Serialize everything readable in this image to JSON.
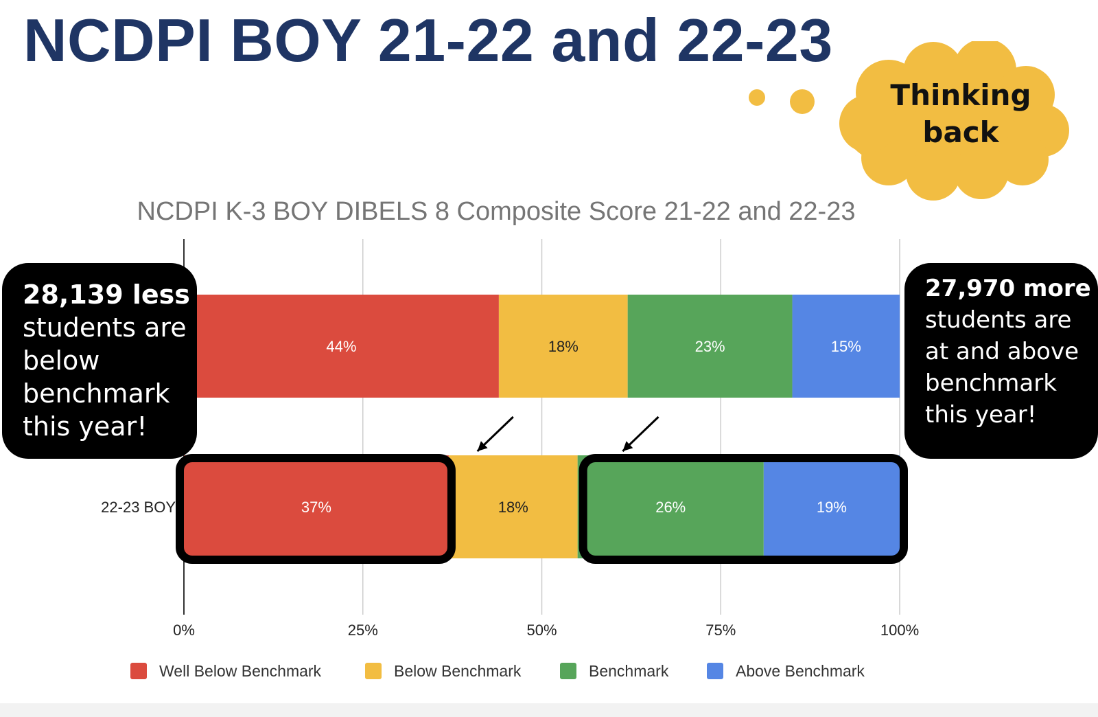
{
  "slide": {
    "title": "NCDPI BOY 21-22 and 22-23"
  },
  "thought_bubble": {
    "text": "Thinking\nback",
    "color": "#f2bd42"
  },
  "callouts": {
    "left": {
      "bold": "28,139 less",
      "rest": "students are\nbelow\nbenchmark\nthis year!"
    },
    "right": {
      "bold": "27,970 more",
      "rest": "students are\nat and above\nbenchmark\nthis year!"
    }
  },
  "chart_data": {
    "type": "bar",
    "orientation": "horizontal",
    "stacked": true,
    "title": "NCDPI K-3 BOY DIBELS 8 Composite Score 21-22 and 22-23",
    "categories": [
      "",
      "22-23 BOY"
    ],
    "series": [
      {
        "name": "Well Below Benchmark",
        "color": "#db4b3e",
        "values": [
          44,
          37
        ],
        "labels": [
          "44%",
          "37%"
        ]
      },
      {
        "name": "Below Benchmark",
        "color": "#f2bd42",
        "values": [
          18,
          18
        ],
        "labels": [
          "18%",
          "18%"
        ]
      },
      {
        "name": "Benchmark",
        "color": "#57a55a",
        "values": [
          23,
          26
        ],
        "labels": [
          "23%",
          "26%"
        ]
      },
      {
        "name": "Above Benchmark",
        "color": "#5586e4",
        "values": [
          15,
          19
        ],
        "labels": [
          "15%",
          "19%"
        ]
      }
    ],
    "xlim": [
      0,
      100
    ],
    "xticks": [
      "0%",
      "25%",
      "50%",
      "75%",
      "100%"
    ],
    "grid": true,
    "legend": "bottom",
    "label_colors": [
      "#ffffff",
      "#222222",
      "#ffffff",
      "#ffffff"
    ]
  }
}
